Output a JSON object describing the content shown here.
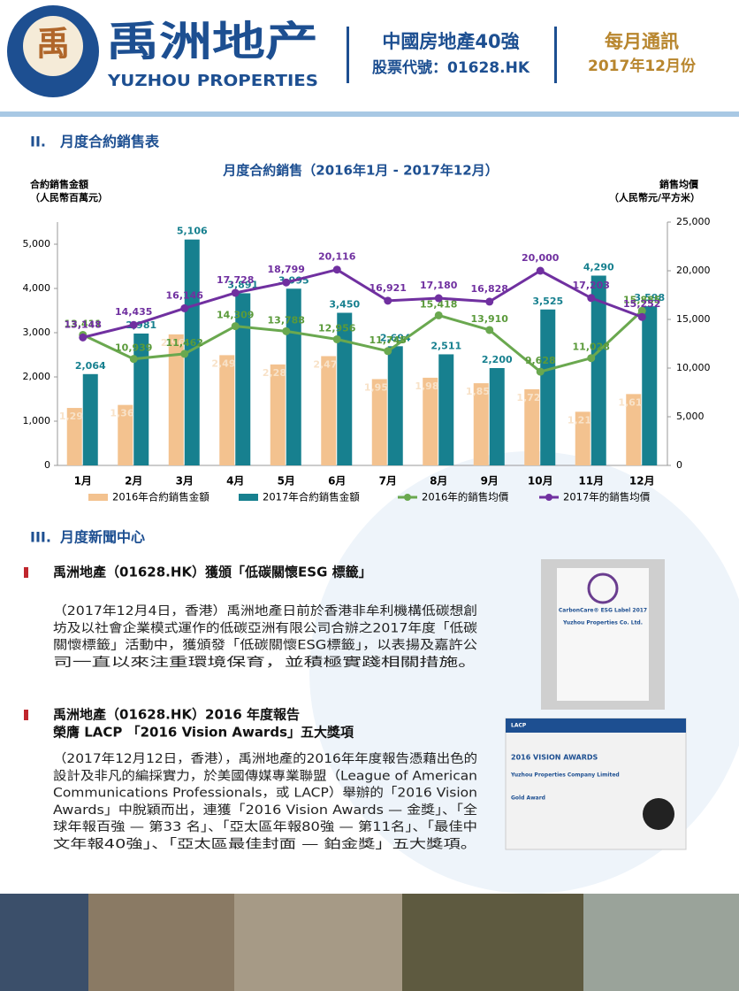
{
  "header": {
    "logo_mark": "禹",
    "brand": "禹洲地产",
    "brand_en": "YUZHOU PROPERTIES",
    "rank": "中國房地產40強",
    "stock": "股票代號：01628.HK",
    "newsletter": "每月通訊",
    "issue": "2017年12月份"
  },
  "sections": [
    {
      "number": "II.",
      "title": "月度合約銷售表"
    },
    {
      "number": "III.",
      "title": "月度新聞中心"
    }
  ],
  "chart_data": {
    "type": "bar_line",
    "title": "月度合約銷售（2016年1月 - 2017年12月）",
    "y_label": [
      "合約銷售金額",
      "（人民幣百萬元）"
    ],
    "y2_label": [
      "銷售均價",
      "（人民幣元/平方米）"
    ],
    "categories": [
      "1月",
      "2月",
      "3月",
      "4月",
      "5月",
      "6月",
      "7月",
      "8月",
      "9月",
      "10月",
      "11月",
      "12月"
    ],
    "ylim": [
      0,
      5500
    ],
    "yticks": [
      0,
      {
        "value": 1000,
        "label": "1,000"
      },
      {
        "value": 2000,
        "label": "2,000"
      },
      {
        "value": 3000,
        "label": "3,000"
      },
      {
        "value": 4000,
        "label": "4,000"
      },
      {
        "value": 5000,
        "label": "5,000"
      }
    ],
    "y2lim": [
      0,
      25000
    ],
    "y2ticks": [
      0,
      {
        "value": 5000,
        "label": "5,000"
      },
      {
        "value": 10000,
        "label": "10,000"
      },
      {
        "value": 15000,
        "label": "15,000"
      },
      {
        "value": 20000,
        "label": "20,000"
      },
      {
        "value": 25000,
        "label": "25,000"
      }
    ],
    "grid": false,
    "legend": "bottom",
    "series": [
      {
        "name": "2016年合約銷售金額",
        "type": "bar",
        "color": "#f3c28f",
        "values": [
          1299,
          1367,
          2962,
          2492,
          2282,
          2470,
          1951,
          1982,
          1858,
          1722,
          1213,
          1613
        ],
        "value_labels": [
          "1,299",
          "1,367",
          "2,962",
          "2,492",
          "2,282",
          "2,470",
          "1,951",
          "1,982",
          "1,858",
          "1,722",
          "1,213",
          "1,613"
        ]
      },
      {
        "name": "2017年合約銷售金額",
        "type": "bar",
        "color": "#17808f",
        "values": [
          2064,
          2981,
          5106,
          3891,
          3995,
          3450,
          2694,
          2511,
          2200,
          3525,
          4290,
          3598
        ],
        "value_labels": [
          "2,064",
          "2,981",
          "5,106",
          "3,891",
          "3,995",
          "3,450",
          "2,694",
          "2,511",
          "2,200",
          "3,525",
          "4,290",
          "3,598"
        ]
      },
      {
        "name": "2016年的銷售均價",
        "type": "line",
        "axis": "y2",
        "color": "#6aa84f",
        "values": [
          13411,
          10939,
          11462,
          14309,
          13788,
          12956,
          11745,
          15418,
          13910,
          9628,
          11028,
          15885
        ],
        "value_labels": [
          "13,411",
          "10,939",
          "11,462",
          "14,309",
          "13,788",
          "12,956",
          "11,745",
          "15,418",
          "13,910",
          "9,628",
          "11,028",
          "15,885"
        ]
      },
      {
        "name": "2017年的銷售均價",
        "type": "line",
        "axis": "y2",
        "color": "#7030a0",
        "values": [
          13148,
          14435,
          16146,
          17728,
          18799,
          20116,
          16921,
          17180,
          16828,
          20000,
          17203,
          15252
        ],
        "value_labels": [
          "13,148",
          "14,435",
          "16,146",
          "17,728",
          "18,799",
          "20,116",
          "16,921",
          "17,180",
          "16,828",
          "20,000",
          "17,203",
          "15,252"
        ]
      }
    ]
  },
  "news": [
    {
      "headline": [
        "禹洲地產（01628.HK）獲頒「低碳關懷ESG 標籤」"
      ],
      "body": [
        "（2017年12月4日，香港）禹洲地產日前於香港非牟利機構低碳想創",
        "坊及以社會企業模式運作的低碳亞洲有限公司合辦之2017年度「低碳",
        "關懷標籤」活動中，獲頒發「低碳關懷ESG標籤」，以表揚及嘉許公",
        "司一直以來注重環境保育，並積極實踐相關措施。"
      ],
      "image_text": [
        "CarbonCare® ESG Label 2017",
        "Yuzhou Properties Co. Ltd."
      ]
    },
    {
      "headline": [
        "禹洲地產（01628.HK）2016 年度報告",
        "榮膺 LACP 「2016 Vision Awards」五大獎項"
      ],
      "body": [
        "（2017年12月12日，香港），禹洲地產的2016年年度報告憑藉出色的",
        "設計及非凡的編採實力，於美國傳媒專業聯盟（League of American",
        "Communications Professionals，或 LACP）舉辦的「2016 Vision",
        "Awards」中脫穎而出，連獲「2016 Vision Awards — 金獎」、「全",
        "球年報百強 — 第33 名」、「亞太區年報80強 — 第11名」、「最佳中",
        "文年報40強」、「亞太區最佳封面 — 鉑金獎」五大獎項。"
      ],
      "image_text": [
        "LACP",
        "2016 VISION AWARDS",
        "Yuzhou Properties Company Limited",
        "Gold Award"
      ]
    }
  ]
}
